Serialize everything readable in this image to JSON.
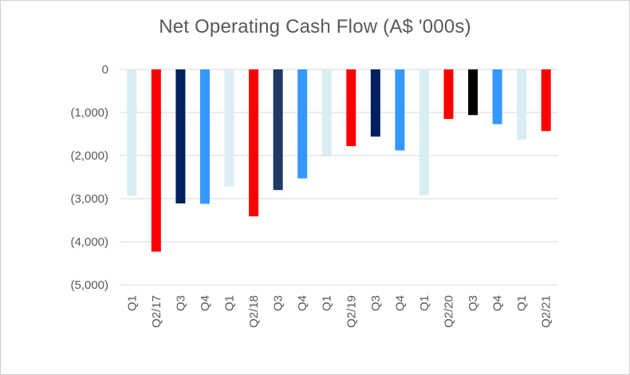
{
  "chart_data": {
    "type": "bar",
    "title": "Net Operating Cash Flow (A$ '000s)",
    "xlabel": "",
    "ylabel": "",
    "ylim": [
      -5000,
      0
    ],
    "y_ticks": [
      0,
      -1000,
      -2000,
      -3000,
      -4000,
      -5000
    ],
    "y_tick_labels": [
      "0",
      "(1,000)",
      "(2,000)",
      "(3,000)",
      "(4,000)",
      "(5,000)"
    ],
    "grid": true,
    "legend": "none",
    "categories": [
      "Q1",
      "Q2/17",
      "Q3",
      "Q4",
      "Q1",
      "Q2/18",
      "Q3",
      "Q4",
      "Q1",
      "Q2/19",
      "Q3",
      "Q4",
      "Q1",
      "Q2/20",
      "Q3",
      "Q4",
      "Q1",
      "Q2/21"
    ],
    "values": [
      -2930,
      -4230,
      -3110,
      -3120,
      -2720,
      -3410,
      -2800,
      -2530,
      -1990,
      -1780,
      -1560,
      -1880,
      -2920,
      -1150,
      -1060,
      -1270,
      -1630,
      -1430
    ],
    "colors": [
      "#daedf4",
      "#ff0000",
      "#002060",
      "#3399ff",
      "#daedf4",
      "#ff0000",
      "#1f3864",
      "#3399ff",
      "#daedf4",
      "#ff0000",
      "#002060",
      "#3399ff",
      "#daedf4",
      "#ff0000",
      "#000000",
      "#3399ff",
      "#daedf4",
      "#ff0000"
    ]
  }
}
